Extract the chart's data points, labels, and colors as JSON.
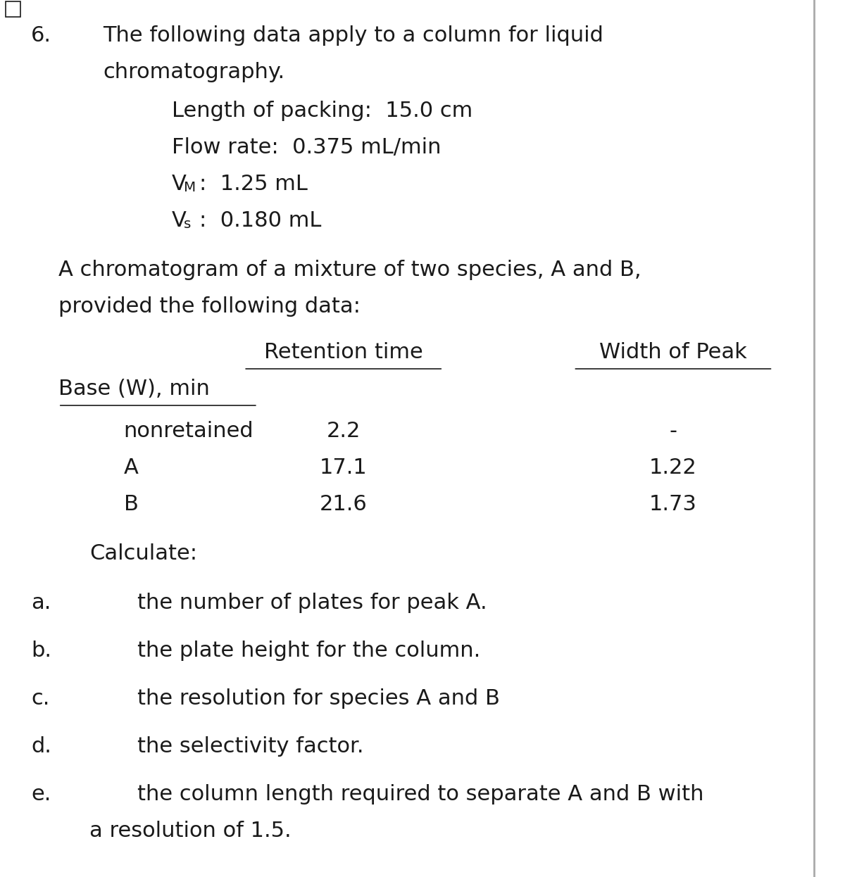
{
  "bg_color": "#ffffff",
  "text_color": "#1a1a1a",
  "problem_number": "6.",
  "title_line1": "The following data apply to a column for liquid",
  "title_line2": "chromatography.",
  "param1": "Length of packing:  15.0 cm",
  "param2": "Flow rate:  0.375 mL/min",
  "param3_prefix": "V",
  "param3_sub": "M",
  "param3_suffix": ":  1.25 mL",
  "param4_prefix": "V",
  "param4_sub": "s",
  "param4_suffix": ":  0.180 mL",
  "intro": "A chromatogram of a mixture of two species, A and B,",
  "intro2": "provided the following data:",
  "col1_header": "Retention time",
  "col2_header": "Width of Peak",
  "col2_subheader": "Base (W), min",
  "row0_label": "nonretained",
  "row0_col1": "2.2",
  "row0_col2": "-",
  "row1_label": "A",
  "row1_col1": "17.1",
  "row1_col2": "1.22",
  "row2_label": "B",
  "row2_col1": "21.6",
  "row2_col2": "1.73",
  "calc_label": "Calculate:",
  "item_a_letter": "a.",
  "item_a_text": "the number of plates for peak A.",
  "item_b_letter": "b.",
  "item_b_text": "the plate height for the column.",
  "item_c_letter": "c.",
  "item_c_text": "the resolution for species A and B",
  "item_d_letter": "d.",
  "item_d_text": "the selectivity factor.",
  "item_e_letter": "e.",
  "item_e_text": "the column length required to separate A and B with",
  "item_e_text2": "a resolution of 1.5.",
  "font_size_main": 22,
  "font_family": "DejaVu Sans"
}
